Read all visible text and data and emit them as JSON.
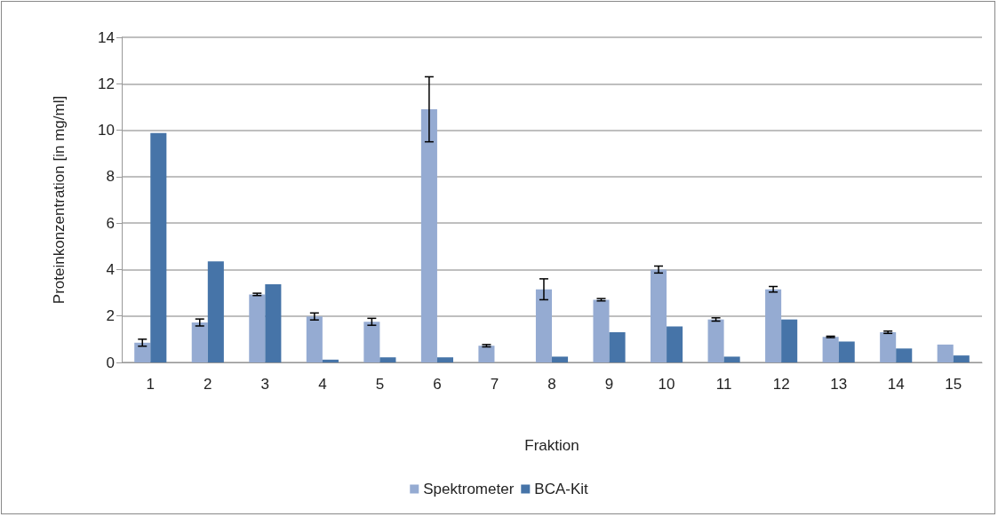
{
  "chart_data": {
    "type": "bar",
    "xlabel": "Fraktion",
    "ylabel": "Proteinkonzentration [in mg/ml]",
    "categories": [
      "1",
      "2",
      "3",
      "4",
      "5",
      "6",
      "7",
      "8",
      "9",
      "10",
      "11",
      "12",
      "13",
      "14",
      "15"
    ],
    "series": [
      {
        "name": "Spektrometer",
        "color": "#95abd2",
        "values": [
          0.85,
          1.72,
          2.93,
          1.98,
          1.75,
          10.9,
          0.72,
          3.15,
          2.7,
          4.0,
          1.85,
          3.15,
          1.1,
          1.3,
          0.77
        ],
        "errors": [
          0.15,
          0.15,
          0.05,
          0.15,
          0.15,
          1.4,
          0.05,
          0.45,
          0.05,
          0.15,
          0.07,
          0.12,
          0.03,
          0.05,
          null
        ]
      },
      {
        "name": "BCA-Kit",
        "color": "#4674a8",
        "values": [
          9.88,
          4.35,
          3.37,
          0.12,
          0.22,
          0.22,
          0,
          0.25,
          1.3,
          1.55,
          0.25,
          1.85,
          0.9,
          0.6,
          0.3
        ]
      }
    ],
    "ylim": [
      0,
      14
    ],
    "yticks": [
      0,
      2,
      4,
      6,
      8,
      10,
      12,
      14
    ],
    "grid": "y",
    "legend": "bottom"
  }
}
